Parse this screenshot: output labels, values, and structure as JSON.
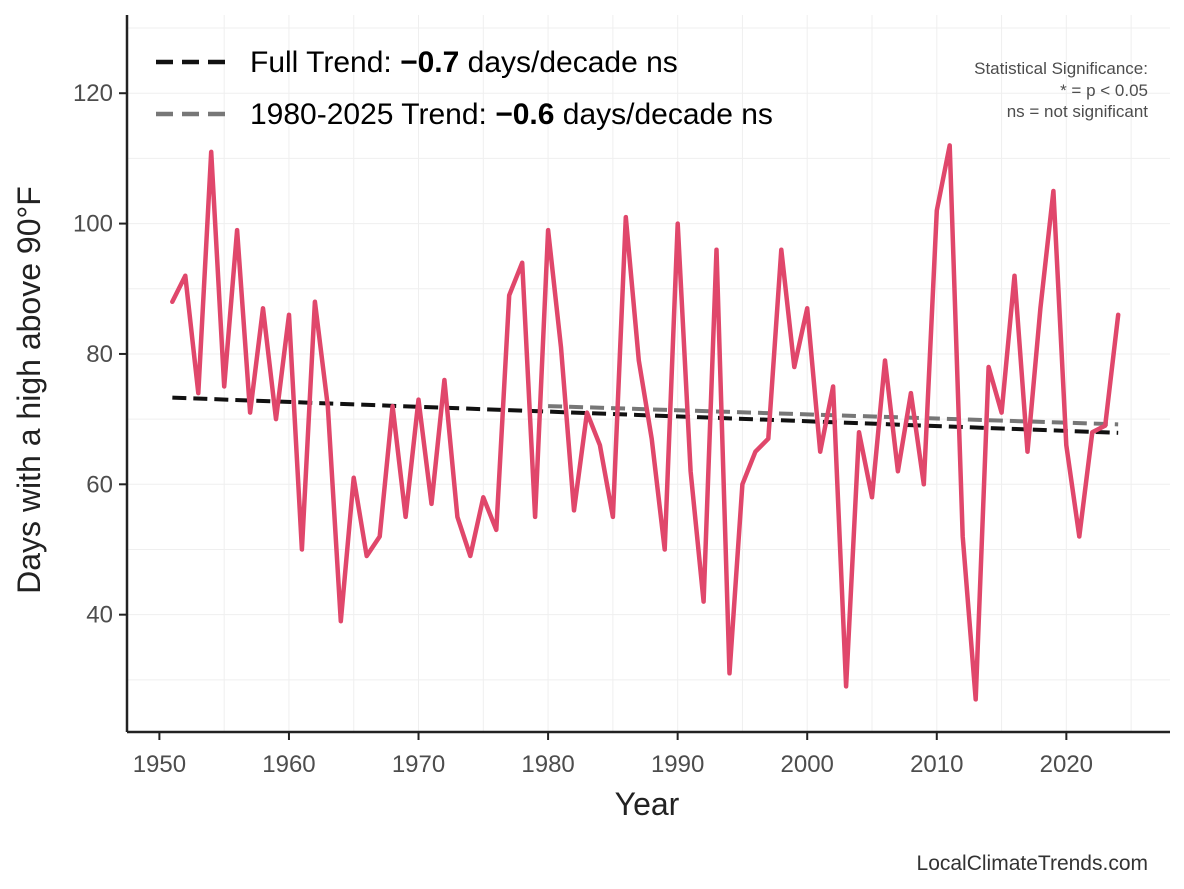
{
  "chart_data": {
    "type": "line",
    "xlabel": "Year",
    "ylabel": "Days with a high above 90°F",
    "xlim": [
      1947.5,
      2028
    ],
    "ylim": [
      22,
      132
    ],
    "xticks": [
      1950,
      1960,
      1970,
      1980,
      1990,
      2000,
      2010,
      2020
    ],
    "yticks": [
      40,
      60,
      80,
      100,
      120
    ],
    "grid": true,
    "series": [
      {
        "name": "Days above 90°F",
        "color": "#e0476b",
        "x": [
          1951,
          1952,
          1953,
          1954,
          1955,
          1956,
          1957,
          1958,
          1959,
          1960,
          1961,
          1962,
          1963,
          1964,
          1965,
          1966,
          1967,
          1968,
          1969,
          1970,
          1971,
          1972,
          1973,
          1974,
          1975,
          1976,
          1977,
          1978,
          1979,
          1980,
          1981,
          1982,
          1983,
          1984,
          1985,
          1986,
          1987,
          1988,
          1989,
          1990,
          1991,
          1992,
          1993,
          1994,
          1995,
          1996,
          1997,
          1998,
          1999,
          2000,
          2001,
          2002,
          2003,
          2004,
          2005,
          2006,
          2007,
          2008,
          2009,
          2010,
          2011,
          2012,
          2013,
          2014,
          2015,
          2016,
          2017,
          2018,
          2019,
          2020,
          2021,
          2022,
          2023,
          2024
        ],
        "values": [
          88,
          92,
          74,
          111,
          75,
          99,
          71,
          87,
          70,
          86,
          50,
          88,
          72,
          39,
          61,
          49,
          52,
          72,
          55,
          73,
          57,
          76,
          55,
          49,
          58,
          53,
          89,
          94,
          55,
          99,
          81,
          56,
          71,
          66,
          55,
          101,
          79,
          67,
          50,
          100,
          62,
          42,
          96,
          31,
          60,
          65,
          67,
          96,
          78,
          87,
          65,
          75,
          29,
          68,
          58,
          79,
          62,
          74,
          60,
          102,
          112,
          52,
          27,
          78,
          71,
          92,
          65,
          87,
          105,
          66,
          52,
          68,
          69,
          86
        ]
      }
    ],
    "trends": [
      {
        "name": "Full Trend",
        "color": "#111111",
        "x": [
          1951,
          2024
        ],
        "values": [
          73.3,
          67.9
        ]
      },
      {
        "name": "1980-2025 Trend",
        "color": "#777777",
        "x": [
          1980,
          2024
        ],
        "values": [
          72.0,
          69.2
        ]
      }
    ],
    "legend": {
      "position": "top-left",
      "entries": [
        {
          "prefix": "Full Trend: ",
          "value": "−0.7",
          "suffix": " days/decade ns"
        },
        {
          "prefix": "1980-2025 Trend: ",
          "value": "−0.6",
          "suffix": " days/decade ns"
        }
      ]
    },
    "annotation": {
      "position": "top-right",
      "lines": [
        "Statistical Significance:",
        "* = p < 0.05",
        "ns = not significant"
      ]
    }
  },
  "source": "LocalClimateTrends.com"
}
